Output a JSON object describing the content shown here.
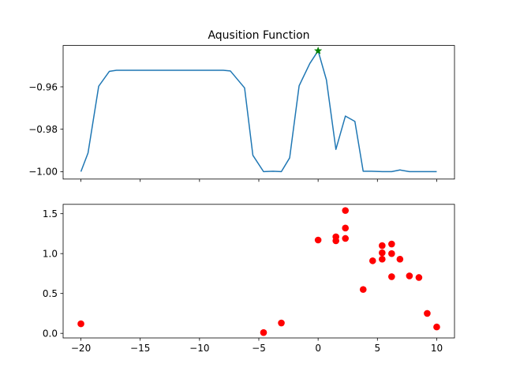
{
  "chart_data": [
    {
      "type": "line",
      "title": "Aqusition Function",
      "xlabel": "",
      "ylabel": "",
      "xlim": [
        -21.5,
        11.5
      ],
      "ylim": [
        -1.0035,
        -0.9405
      ],
      "grid": false,
      "xticks": [
        -20,
        -15,
        -10,
        -5,
        0,
        5,
        10
      ],
      "xtick_labels_visible": false,
      "yticks": [
        -0.96,
        -0.98,
        -1.0
      ],
      "ytick_labels": [
        "−0.96",
        "−0.98",
        "−1.00"
      ],
      "line_color": "#1f77b4",
      "series": [
        {
          "x": [
            -20,
            -19.4,
            -18.5,
            -17.6,
            -17,
            -16,
            -15,
            -14,
            -13,
            -12,
            -11,
            -10,
            -9,
            -8,
            -7.4,
            -6.2,
            -5.5,
            -4.6,
            -3.8,
            -3.1,
            -2.4,
            -1.6,
            -0.7,
            0,
            0.7,
            1.5,
            2.3,
            3.1,
            3.8,
            4.5,
            5.4,
            6.2,
            6.9,
            7.7,
            8.5,
            9.2,
            10
          ],
          "y": [
            -1.0,
            -0.9912,
            -0.9597,
            -0.9527,
            -0.9522,
            -0.9522,
            -0.9522,
            -0.9522,
            -0.9522,
            -0.9522,
            -0.9522,
            -0.9522,
            -0.9522,
            -0.9522,
            -0.9525,
            -0.9605,
            -0.9923,
            -1.0,
            -0.9998,
            -1.0,
            -0.9935,
            -0.9595,
            -0.949,
            -0.943,
            -0.9567,
            -0.9895,
            -0.9738,
            -0.9763,
            -0.9998,
            -0.9998,
            -1.0,
            -1.0,
            -0.9992,
            -1.0,
            -1.0,
            -1.0,
            -1.0
          ]
        }
      ],
      "marker": {
        "x": 0,
        "y": -0.943,
        "color": "#008000",
        "shape": "star"
      }
    },
    {
      "type": "scatter",
      "title": "",
      "xlabel": "",
      "ylabel": "",
      "xlim": [
        -21.5,
        11.5
      ],
      "ylim": [
        -0.0575,
        1.6175
      ],
      "grid": false,
      "xticks": [
        -20,
        -15,
        -10,
        -5,
        0,
        5,
        10
      ],
      "xtick_labels": [
        "−20",
        "−15",
        "−10",
        "−5",
        "0",
        "5",
        "10"
      ],
      "yticks": [
        0.0,
        0.5,
        1.0,
        1.5
      ],
      "ytick_labels": [
        "0.0",
        "0.5",
        "1.0",
        "1.5"
      ],
      "point_color": "#ff0000",
      "points": [
        [
          -20,
          0.12
        ],
        [
          -4.6,
          0.01
        ],
        [
          -3.1,
          0.13
        ],
        [
          0,
          1.17
        ],
        [
          1.5,
          1.21
        ],
        [
          1.5,
          1.16
        ],
        [
          2.3,
          1.54
        ],
        [
          2.3,
          1.32
        ],
        [
          2.3,
          1.19
        ],
        [
          3.8,
          0.55
        ],
        [
          4.6,
          0.91
        ],
        [
          5.4,
          1.1
        ],
        [
          5.4,
          1.01
        ],
        [
          5.4,
          0.93
        ],
        [
          6.2,
          1.12
        ],
        [
          6.2,
          1.0
        ],
        [
          6.2,
          0.71
        ],
        [
          6.9,
          0.93
        ],
        [
          7.7,
          0.72
        ],
        [
          8.5,
          0.7
        ],
        [
          9.2,
          0.25
        ],
        [
          10,
          0.08
        ]
      ]
    }
  ]
}
